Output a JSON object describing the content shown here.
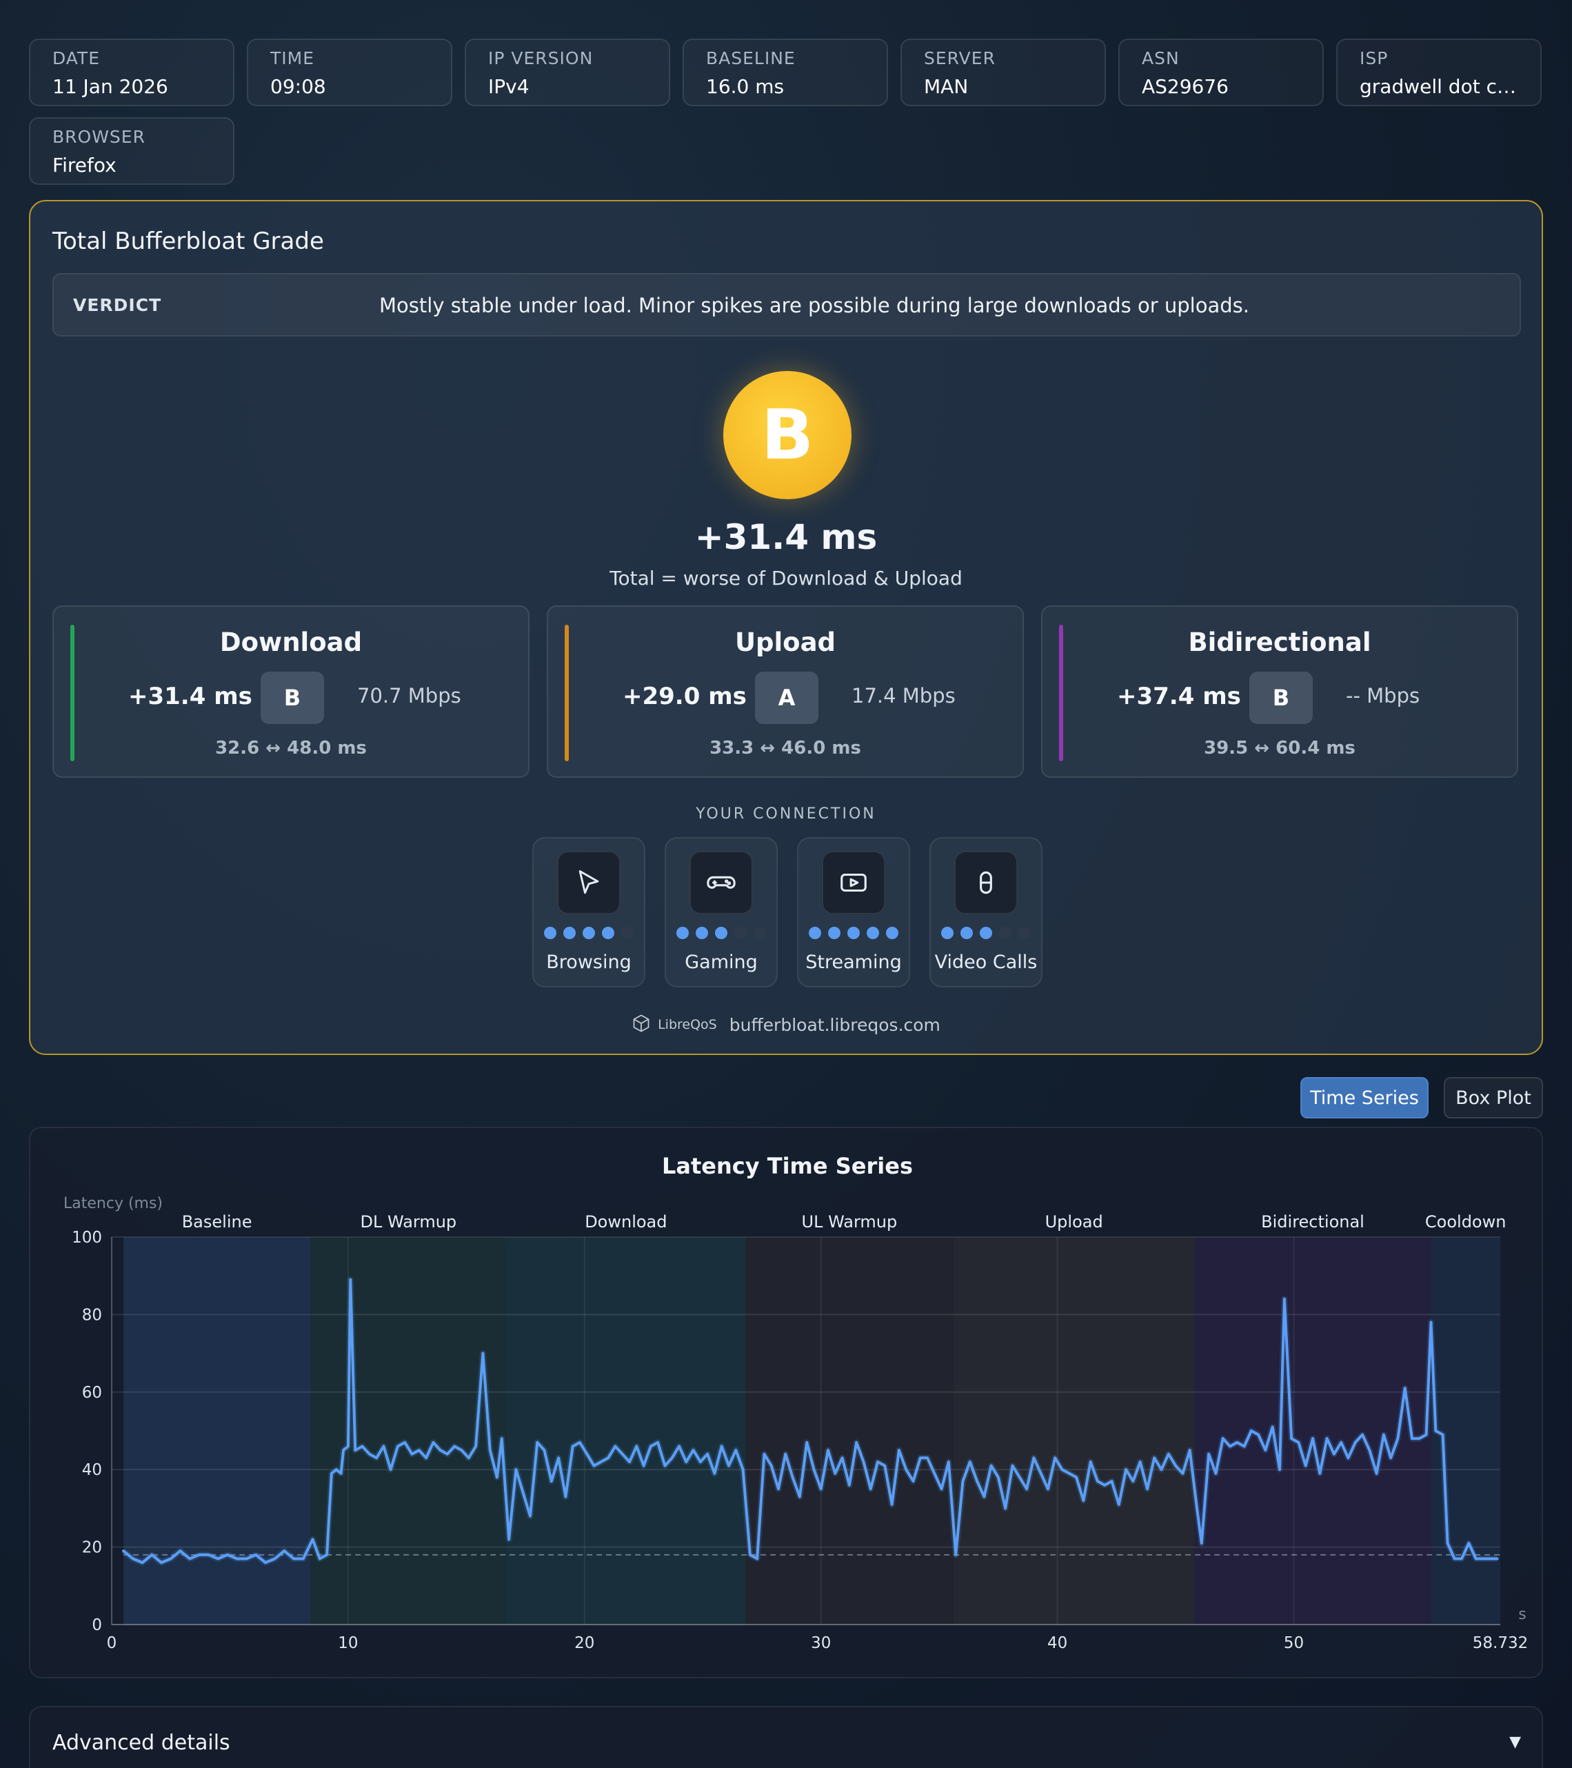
{
  "info": {
    "date": {
      "label": "DATE",
      "value": "11 Jan 2026"
    },
    "time": {
      "label": "TIME",
      "value": "09:08"
    },
    "ip_version": {
      "label": "IP VERSION",
      "value": "IPv4"
    },
    "baseline": {
      "label": "BASELINE",
      "value": "16.0 ms"
    },
    "server": {
      "label": "SERVER",
      "value": "MAN"
    },
    "asn": {
      "label": "ASN",
      "value": "AS29676"
    },
    "isp": {
      "label": "ISP",
      "value": "gradwell dot co..."
    },
    "browser": {
      "label": "BROWSER",
      "value": "Firefox"
    }
  },
  "grade_panel": {
    "title": "Total Bufferbloat Grade",
    "verdict_label": "VERDICT",
    "verdict_text": "Mostly stable under load. Minor spikes are possible during large downloads or uploads.",
    "grade": "B",
    "grade_color": "#f4b726",
    "total_ms": "+31.4 ms",
    "total_sub": "Total = worse of Download & Upload"
  },
  "metrics": [
    {
      "title": "Download",
      "ms": "+31.4 ms",
      "grade": "B",
      "mbps": "70.7 Mbps",
      "range": "32.6 ↔ 48.0  ms",
      "color": "#23a559"
    },
    {
      "title": "Upload",
      "ms": "+29.0 ms",
      "grade": "A",
      "mbps": "17.4 Mbps",
      "range": "33.3 ↔ 46.0  ms",
      "color": "#d4891c"
    },
    {
      "title": "Bidirectional",
      "ms": "+37.4 ms",
      "grade": "B",
      "mbps": "-- Mbps",
      "range": "39.5 ↔ 60.4  ms",
      "color": "#8e3bb0"
    }
  ],
  "connection": {
    "label": "YOUR CONNECTION",
    "items": [
      {
        "name": "Browsing",
        "icon": "cursor-icon",
        "score": 4
      },
      {
        "name": "Gaming",
        "icon": "gamepad-icon",
        "score": 3
      },
      {
        "name": "Streaming",
        "icon": "play-icon",
        "score": 5
      },
      {
        "name": "Video Calls",
        "icon": "microphone-icon",
        "score": 3
      }
    ]
  },
  "footer": {
    "brand": "LibreQoS",
    "url": "bufferbloat.libreqos.com"
  },
  "view_toggle": {
    "time_series": "Time Series",
    "box_plot": "Box Plot",
    "active": "Time Series"
  },
  "chart_data": {
    "type": "line",
    "title": "Latency Time Series",
    "ylabel": "Latency (ms)",
    "xlabel": "s",
    "xlim": [
      0,
      58.732
    ],
    "ylim": [
      0,
      100
    ],
    "x_ticks": [
      "0",
      "10",
      "20",
      "30",
      "40",
      "50",
      "58.732"
    ],
    "y_ticks": [
      "0",
      "20",
      "40",
      "60",
      "80",
      "100"
    ],
    "baseline_value": 18,
    "phases": [
      {
        "name": "Baseline",
        "start": 0.5,
        "end": 8.4,
        "color": "#1e3350"
      },
      {
        "name": "DL Warmup",
        "start": 8.4,
        "end": 16.7,
        "color": "#1b3036"
      },
      {
        "name": "Download",
        "start": 16.7,
        "end": 26.8,
        "color": "#1a3440"
      },
      {
        "name": "UL Warmup",
        "start": 26.8,
        "end": 35.6,
        "color": "#23262f"
      },
      {
        "name": "Upload",
        "start": 35.6,
        "end": 45.8,
        "color": "#282a31"
      },
      {
        "name": "Bidirectional",
        "start": 45.8,
        "end": 55.8,
        "color": "#25213f"
      },
      {
        "name": "Cooldown",
        "start": 55.8,
        "end": 58.73,
        "color": "#1b2a44"
      }
    ],
    "series": [
      {
        "color": "#5b9ef5",
        "points": [
          [
            0.5,
            19
          ],
          [
            0.9,
            17
          ],
          [
            1.3,
            16
          ],
          [
            1.7,
            18
          ],
          [
            2.1,
            16
          ],
          [
            2.5,
            17
          ],
          [
            2.9,
            19
          ],
          [
            3.3,
            17
          ],
          [
            3.7,
            18
          ],
          [
            4.1,
            18
          ],
          [
            4.5,
            17
          ],
          [
            4.9,
            18
          ],
          [
            5.3,
            17
          ],
          [
            5.7,
            17
          ],
          [
            6.1,
            18
          ],
          [
            6.5,
            16
          ],
          [
            6.9,
            17
          ],
          [
            7.3,
            19
          ],
          [
            7.7,
            17
          ],
          [
            8.1,
            17
          ],
          [
            8.5,
            22
          ],
          [
            8.8,
            17
          ],
          [
            9.1,
            18
          ],
          [
            9.3,
            39
          ],
          [
            9.5,
            40
          ],
          [
            9.7,
            39
          ],
          [
            9.8,
            45
          ],
          [
            10.0,
            46
          ],
          [
            10.1,
            89
          ],
          [
            10.3,
            45
          ],
          [
            10.6,
            46
          ],
          [
            10.9,
            44
          ],
          [
            11.2,
            43
          ],
          [
            11.5,
            46
          ],
          [
            11.8,
            40
          ],
          [
            12.1,
            46
          ],
          [
            12.4,
            47
          ],
          [
            12.7,
            44
          ],
          [
            13.0,
            45
          ],
          [
            13.3,
            43
          ],
          [
            13.6,
            47
          ],
          [
            13.9,
            45
          ],
          [
            14.2,
            44
          ],
          [
            14.5,
            46
          ],
          [
            14.8,
            45
          ],
          [
            15.1,
            43
          ],
          [
            15.4,
            46
          ],
          [
            15.7,
            70
          ],
          [
            16.0,
            45
          ],
          [
            16.3,
            38
          ],
          [
            16.5,
            48
          ],
          [
            16.8,
            22
          ],
          [
            17.1,
            40
          ],
          [
            17.4,
            34
          ],
          [
            17.7,
            28
          ],
          [
            18.0,
            47
          ],
          [
            18.3,
            45
          ],
          [
            18.6,
            37
          ],
          [
            18.9,
            43
          ],
          [
            19.2,
            33
          ],
          [
            19.5,
            46
          ],
          [
            19.8,
            47
          ],
          [
            20.1,
            44
          ],
          [
            20.4,
            41
          ],
          [
            20.7,
            42
          ],
          [
            21.0,
            43
          ],
          [
            21.3,
            46
          ],
          [
            21.6,
            44
          ],
          [
            21.9,
            42
          ],
          [
            22.2,
            46
          ],
          [
            22.5,
            41
          ],
          [
            22.8,
            46
          ],
          [
            23.1,
            47
          ],
          [
            23.4,
            41
          ],
          [
            23.7,
            43
          ],
          [
            24.0,
            46
          ],
          [
            24.3,
            42
          ],
          [
            24.6,
            45
          ],
          [
            24.9,
            42
          ],
          [
            25.2,
            44
          ],
          [
            25.5,
            39
          ],
          [
            25.8,
            46
          ],
          [
            26.1,
            41
          ],
          [
            26.4,
            45
          ],
          [
            26.7,
            40
          ],
          [
            27.0,
            18
          ],
          [
            27.3,
            17
          ],
          [
            27.6,
            44
          ],
          [
            27.9,
            41
          ],
          [
            28.2,
            35
          ],
          [
            28.5,
            44
          ],
          [
            28.8,
            38
          ],
          [
            29.1,
            33
          ],
          [
            29.4,
            47
          ],
          [
            29.7,
            40
          ],
          [
            30.0,
            35
          ],
          [
            30.3,
            45
          ],
          [
            30.6,
            39
          ],
          [
            30.9,
            43
          ],
          [
            31.2,
            36
          ],
          [
            31.5,
            47
          ],
          [
            31.8,
            42
          ],
          [
            32.1,
            35
          ],
          [
            32.4,
            42
          ],
          [
            32.7,
            41
          ],
          [
            33.0,
            31
          ],
          [
            33.3,
            45
          ],
          [
            33.6,
            40
          ],
          [
            33.9,
            37
          ],
          [
            34.2,
            43
          ],
          [
            34.5,
            43
          ],
          [
            34.8,
            39
          ],
          [
            35.1,
            35
          ],
          [
            35.4,
            42
          ],
          [
            35.7,
            18
          ],
          [
            36.0,
            37
          ],
          [
            36.3,
            42
          ],
          [
            36.6,
            37
          ],
          [
            36.9,
            33
          ],
          [
            37.2,
            41
          ],
          [
            37.5,
            38
          ],
          [
            37.8,
            30
          ],
          [
            38.1,
            41
          ],
          [
            38.4,
            38
          ],
          [
            38.7,
            35
          ],
          [
            39.0,
            43
          ],
          [
            39.3,
            39
          ],
          [
            39.6,
            35
          ],
          [
            39.9,
            43
          ],
          [
            40.2,
            40
          ],
          [
            40.5,
            39
          ],
          [
            40.8,
            38
          ],
          [
            41.1,
            32
          ],
          [
            41.4,
            42
          ],
          [
            41.7,
            37
          ],
          [
            42.0,
            36
          ],
          [
            42.3,
            37
          ],
          [
            42.6,
            31
          ],
          [
            42.9,
            40
          ],
          [
            43.2,
            37
          ],
          [
            43.5,
            42
          ],
          [
            43.8,
            35
          ],
          [
            44.1,
            43
          ],
          [
            44.4,
            40
          ],
          [
            44.7,
            44
          ],
          [
            45.0,
            41
          ],
          [
            45.3,
            39
          ],
          [
            45.6,
            45
          ],
          [
            45.9,
            30
          ],
          [
            46.1,
            21
          ],
          [
            46.4,
            44
          ],
          [
            46.7,
            39
          ],
          [
            47.0,
            48
          ],
          [
            47.3,
            46
          ],
          [
            47.6,
            47
          ],
          [
            47.9,
            46
          ],
          [
            48.2,
            50
          ],
          [
            48.5,
            49
          ],
          [
            48.8,
            45
          ],
          [
            49.1,
            51
          ],
          [
            49.4,
            40
          ],
          [
            49.6,
            84
          ],
          [
            49.9,
            48
          ],
          [
            50.2,
            47
          ],
          [
            50.5,
            41
          ],
          [
            50.8,
            48
          ],
          [
            51.1,
            39
          ],
          [
            51.4,
            48
          ],
          [
            51.7,
            44
          ],
          [
            52.0,
            47
          ],
          [
            52.3,
            43
          ],
          [
            52.6,
            47
          ],
          [
            52.9,
            49
          ],
          [
            53.2,
            45
          ],
          [
            53.5,
            39
          ],
          [
            53.8,
            49
          ],
          [
            54.1,
            43
          ],
          [
            54.4,
            48
          ],
          [
            54.7,
            61
          ],
          [
            55.0,
            48
          ],
          [
            55.3,
            48
          ],
          [
            55.6,
            49
          ],
          [
            55.8,
            78
          ],
          [
            56.0,
            50
          ],
          [
            56.3,
            49
          ],
          [
            56.5,
            21
          ],
          [
            56.8,
            17
          ],
          [
            57.1,
            17
          ],
          [
            57.4,
            21
          ],
          [
            57.7,
            17
          ],
          [
            58.0,
            17
          ],
          [
            58.3,
            17
          ],
          [
            58.6,
            17
          ]
        ]
      }
    ],
    "grid": true
  },
  "advanced": {
    "label": "Advanced details"
  }
}
